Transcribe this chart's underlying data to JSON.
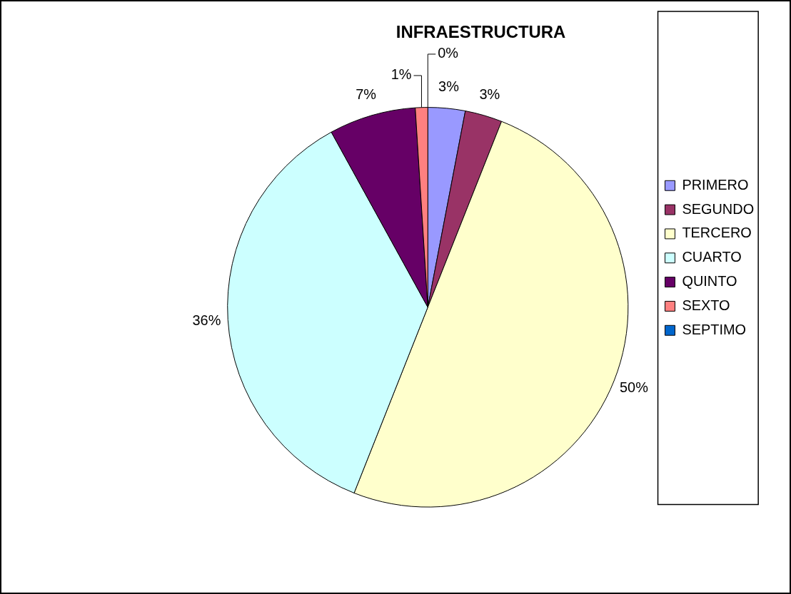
{
  "chart_data": {
    "type": "pie",
    "title": "INFRAESTRUCTURA",
    "categories": [
      "PRIMERO",
      "SEGUNDO",
      "TERCERO",
      "CUARTO",
      "QUINTO",
      "SEXTO",
      "SEPTIMO"
    ],
    "values": [
      3,
      3,
      50,
      36,
      7,
      1,
      0
    ],
    "colors": [
      "#9999ff",
      "#993366",
      "#ffffcc",
      "#ccffff",
      "#660066",
      "#ff8080",
      "#0066cc"
    ],
    "value_labels": [
      "3%",
      "3%",
      "50%",
      "36%",
      "7%",
      "1%",
      "0%"
    ],
    "legend": "right"
  }
}
